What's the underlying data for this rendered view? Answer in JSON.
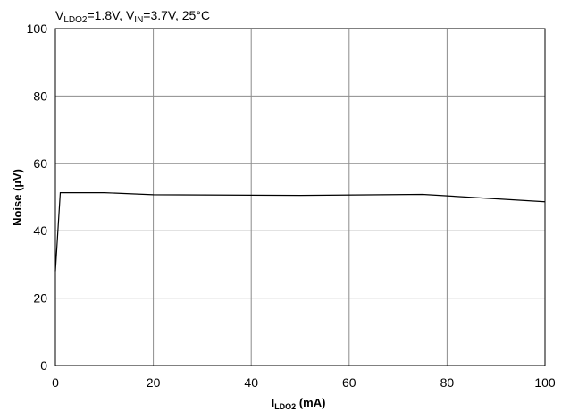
{
  "chart_data": {
    "type": "line",
    "title": "",
    "conditions": {
      "v_ldo2_main": "V",
      "v_ldo2_sub": "LDO2",
      "v_ldo2_value": "=1.8V, ",
      "v_in_main": "V",
      "v_in_sub": "IN",
      "v_in_value": "=3.7V, 25°C"
    },
    "xlabel": {
      "main": "I",
      "sub": "LDO2",
      "rest": " (mA)"
    },
    "ylabel": "Noise (µV)",
    "xlim": [
      0,
      100
    ],
    "ylim": [
      0,
      100
    ],
    "xticks": [
      0,
      20,
      40,
      60,
      80,
      100
    ],
    "yticks": [
      0,
      20,
      40,
      60,
      80,
      100
    ],
    "grid": true,
    "series": [
      {
        "color": "#000000",
        "x": [
          0,
          1,
          10,
          20,
          50,
          75,
          100
        ],
        "y": [
          28,
          51.3,
          51.3,
          50.7,
          50.5,
          50.8,
          48.6
        ]
      }
    ]
  }
}
